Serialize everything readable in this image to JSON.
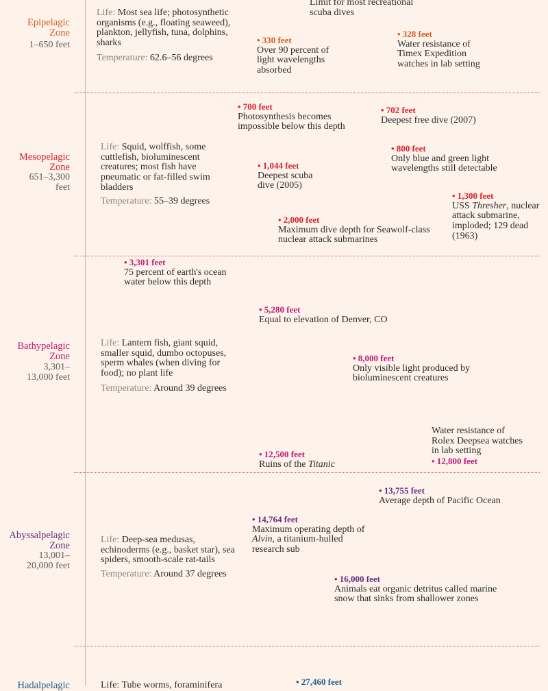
{
  "colors": {
    "epipelagic": "#d65d22",
    "mesopelagic": "#d8202c",
    "bathypelagic": "#c01a76",
    "abyssalpelagic": "#6a2a86",
    "hadalpelagic": "#1f5e8a",
    "background": "#fdf3ea",
    "label_gray": "#8a8580"
  },
  "labels": {
    "life": "Life:",
    "temperature": "Temperature:"
  },
  "zones": {
    "epi": {
      "name": "Epipelagic Zone",
      "range": "1–650 feet",
      "life": "Most sea life; photosynthetic organisms (e.g., floating seaweed), plankton, jellyfish, tuna, dolphins, sharks",
      "temperature": "62.6–56 degrees"
    },
    "meso": {
      "name": "Mesopelagic Zone",
      "range": "651–3,300 feet",
      "life": "Squid, wolffish, some cuttlefish, bioluminescent creatures; most fish have pneumatic or fat-filled swim bladders",
      "temperature": "55–39 degrees"
    },
    "bathy": {
      "name": "Bathypelagic Zone",
      "range": "3,301–13,000 feet",
      "life": "Lantern fish, giant squid, smaller squid, dumbo octopuses, sperm whales (when diving for food); no plant life",
      "temperature": "Around 39 degrees"
    },
    "abyss": {
      "name": "Abyssalpelagic Zone",
      "range": "13,001–20,000 feet",
      "life": "Deep-sea medusas, echinoderms (e.g., basket star), sea spiders, smooth-scale rat-tails",
      "temperature": "Around 37 degrees"
    },
    "hadal": {
      "name_partial": "Hadalpelagic",
      "life_partial": "Life: Tube worms, foraminifera"
    }
  },
  "events": {
    "recreational": {
      "desc": "Limit for most recreational scuba dives"
    },
    "e330": {
      "depth": "• 330 feet",
      "desc": "Over 90 percent of light wavelengths absorbed"
    },
    "e328": {
      "depth": "• 328 feet",
      "desc": "Water resistance of Timex Expedition watches in lab setting"
    },
    "e700": {
      "depth": "• 700 feet",
      "desc": "Photosynthesis becomes impossible below this depth"
    },
    "e702": {
      "depth": "• 702 feet",
      "desc": "Deepest free dive (2007)"
    },
    "e800": {
      "depth": "• 800 feet",
      "desc": "Only blue and green light wavelengths still detectable"
    },
    "e1044": {
      "depth": "• 1,044 feet",
      "desc": "Deepest scuba dive (2005)"
    },
    "e1300": {
      "depth": "• 1,300 feet",
      "desc_pre": "USS ",
      "desc_italic": "Thresher",
      "desc_post": ", nuclear attack submarine, imploded; 129 dead (1963)"
    },
    "e2000": {
      "depth": "• 2,000 feet",
      "desc": "Maximum dive depth for Seawolf-class nuclear attack submarines"
    },
    "e3301": {
      "depth": "• 3,301 feet",
      "desc": "75 percent of earth's ocean water below this depth"
    },
    "e5280": {
      "depth": "• 5,280 feet",
      "desc": "Equal to elevation of Denver, CO"
    },
    "e8000": {
      "depth": "• 8,000 feet",
      "desc": "Only visible light produced by bioluminescent creatures"
    },
    "e12500": {
      "depth": "• 12,500 feet",
      "desc_pre": "Ruins of the ",
      "desc_italic": "Titanic"
    },
    "e12800": {
      "depth": "• 12,800 feet",
      "desc": "Water resistance of Rolex Deepsea watches in lab setting"
    },
    "e13755": {
      "depth": "• 13,755 feet",
      "desc": "Average depth of Pacific Ocean"
    },
    "e14764": {
      "depth": "• 14,764 feet",
      "desc_pre": "Maximum operating depth of ",
      "desc_italic": "Alvin",
      "desc_post": ", a titanium-hulled research sub"
    },
    "e16000": {
      "depth": "• 16,000 feet",
      "desc": "Animals eat organic detritus called marine snow that sinks from shallower zones"
    },
    "e27460": {
      "depth": "• 27,460 feet"
    }
  }
}
